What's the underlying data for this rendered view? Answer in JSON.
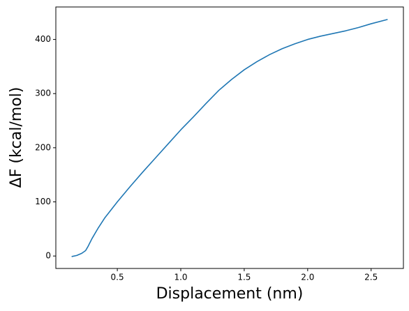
{
  "chart_data": {
    "type": "line",
    "xlabel": "Displacement (nm)",
    "ylabel": "ΔF (kcal/mol)",
    "x": [
      0.14,
      0.18,
      0.22,
      0.25,
      0.27,
      0.3,
      0.35,
      0.4,
      0.5,
      0.6,
      0.7,
      0.8,
      0.9,
      1.0,
      1.1,
      1.2,
      1.3,
      1.4,
      1.5,
      1.6,
      1.7,
      1.8,
      1.9,
      2.0,
      2.1,
      2.2,
      2.3,
      2.4,
      2.5,
      2.63
    ],
    "series": [
      {
        "color": "#1f77b4",
        "values": [
          -1,
          1,
          5,
          10,
          18,
          32,
          52,
          70,
          100,
          128,
          155,
          181,
          207,
          233,
          257,
          282,
          306,
          326,
          344,
          359,
          372,
          383,
          392,
          400,
          406,
          411,
          416,
          422,
          429,
          437
        ]
      }
    ],
    "xlim": [
      0.0155,
      2.7545
    ],
    "ylim": [
      -23,
      460
    ],
    "xticks": [
      0.5,
      {
        "value": 1,
        "label": "1.0"
      },
      1.5,
      {
        "value": 2,
        "label": "2.0"
      },
      2.5
    ],
    "yticks": [
      0,
      100,
      200,
      300,
      400
    ],
    "grid": false
  }
}
